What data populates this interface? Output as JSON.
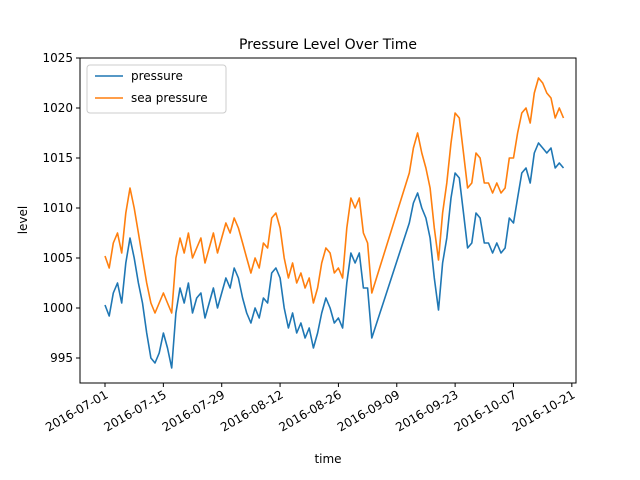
{
  "chart_data": {
    "type": "line",
    "title": "Pressure Level Over Time",
    "xlabel": "time",
    "ylabel": "level",
    "xlim": [
      "2016-06-25",
      "2016-10-22"
    ],
    "ylim": [
      992.5,
      1025
    ],
    "x_ticks": [
      "2016-07-01",
      "2016-07-15",
      "2016-07-29",
      "2016-08-12",
      "2016-08-26",
      "2016-09-09",
      "2016-09-23",
      "2016-10-07",
      "2016-10-21"
    ],
    "y_ticks": [
      995,
      1000,
      1005,
      1010,
      1015,
      1020,
      1025
    ],
    "grid": false,
    "legend": "upper left",
    "series": [
      {
        "name": "pressure",
        "color": "#1f77b4",
        "points": [
          [
            "2016-07-01",
            1000.3
          ],
          [
            "2016-07-02",
            999.2
          ],
          [
            "2016-07-03",
            1001.5
          ],
          [
            "2016-07-04",
            1002.5
          ],
          [
            "2016-07-05",
            1000.5
          ],
          [
            "2016-07-06",
            1004.5
          ],
          [
            "2016-07-07",
            1007.0
          ],
          [
            "2016-07-08",
            1005.0
          ],
          [
            "2016-07-09",
            1002.5
          ],
          [
            "2016-07-10",
            1000.5
          ],
          [
            "2016-07-11",
            997.5
          ],
          [
            "2016-07-12",
            995.0
          ],
          [
            "2016-07-13",
            994.5
          ],
          [
            "2016-07-14",
            995.5
          ],
          [
            "2016-07-15",
            997.5
          ],
          [
            "2016-07-16",
            996.0
          ],
          [
            "2016-07-17",
            994.0
          ],
          [
            "2016-07-18",
            999.5
          ],
          [
            "2016-07-19",
            1002.0
          ],
          [
            "2016-07-20",
            1000.5
          ],
          [
            "2016-07-21",
            1002.5
          ],
          [
            "2016-07-22",
            999.5
          ],
          [
            "2016-07-23",
            1001.0
          ],
          [
            "2016-07-24",
            1001.5
          ],
          [
            "2016-07-25",
            999.0
          ],
          [
            "2016-07-26",
            1000.5
          ],
          [
            "2016-07-27",
            1002.0
          ],
          [
            "2016-07-28",
            1000.0
          ],
          [
            "2016-07-29",
            1001.5
          ],
          [
            "2016-07-30",
            1003.0
          ],
          [
            "2016-07-31",
            1002.0
          ],
          [
            "2016-08-01",
            1004.0
          ],
          [
            "2016-08-02",
            1003.0
          ],
          [
            "2016-08-03",
            1001.0
          ],
          [
            "2016-08-04",
            999.5
          ],
          [
            "2016-08-05",
            998.5
          ],
          [
            "2016-08-06",
            1000.0
          ],
          [
            "2016-08-07",
            999.0
          ],
          [
            "2016-08-08",
            1001.0
          ],
          [
            "2016-08-09",
            1000.5
          ],
          [
            "2016-08-10",
            1003.5
          ],
          [
            "2016-08-11",
            1004.0
          ],
          [
            "2016-08-12",
            1003.0
          ],
          [
            "2016-08-13",
            1000.0
          ],
          [
            "2016-08-14",
            998.0
          ],
          [
            "2016-08-15",
            999.5
          ],
          [
            "2016-08-16",
            997.5
          ],
          [
            "2016-08-17",
            998.5
          ],
          [
            "2016-08-18",
            997.0
          ],
          [
            "2016-08-19",
            998.0
          ],
          [
            "2016-08-20",
            996.0
          ],
          [
            "2016-08-21",
            997.5
          ],
          [
            "2016-08-22",
            999.5
          ],
          [
            "2016-08-23",
            1001.0
          ],
          [
            "2016-08-24",
            1000.0
          ],
          [
            "2016-08-25",
            998.5
          ],
          [
            "2016-08-26",
            999.0
          ],
          [
            "2016-08-27",
            998.0
          ],
          [
            "2016-08-28",
            1002.5
          ],
          [
            "2016-08-29",
            1005.5
          ],
          [
            "2016-08-30",
            1004.5
          ],
          [
            "2016-08-31",
            1005.5
          ],
          [
            "2016-09-01",
            1002.0
          ],
          [
            "2016-09-02",
            1002.0
          ],
          [
            "2016-09-03",
            997.0
          ],
          [
            "2016-09-12",
            1008.5
          ],
          [
            "2016-09-13",
            1010.5
          ],
          [
            "2016-09-14",
            1011.5
          ],
          [
            "2016-09-15",
            1010.0
          ],
          [
            "2016-09-16",
            1009.0
          ],
          [
            "2016-09-17",
            1007.0
          ],
          [
            "2016-09-18",
            1003.0
          ],
          [
            "2016-09-19",
            999.8
          ],
          [
            "2016-09-20",
            1004.5
          ],
          [
            "2016-09-21",
            1007.0
          ],
          [
            "2016-09-22",
            1011.0
          ],
          [
            "2016-09-23",
            1013.5
          ],
          [
            "2016-09-24",
            1013.0
          ],
          [
            "2016-09-25",
            1009.5
          ],
          [
            "2016-09-26",
            1006.0
          ],
          [
            "2016-09-27",
            1006.5
          ],
          [
            "2016-09-28",
            1009.5
          ],
          [
            "2016-09-29",
            1009.0
          ],
          [
            "2016-09-30",
            1006.5
          ],
          [
            "2016-10-01",
            1006.5
          ],
          [
            "2016-10-02",
            1005.5
          ],
          [
            "2016-10-03",
            1006.5
          ],
          [
            "2016-10-04",
            1005.5
          ],
          [
            "2016-10-05",
            1006.0
          ],
          [
            "2016-10-06",
            1009.0
          ],
          [
            "2016-10-07",
            1008.5
          ],
          [
            "2016-10-08",
            1011.0
          ],
          [
            "2016-10-09",
            1013.5
          ],
          [
            "2016-10-10",
            1014.0
          ],
          [
            "2016-10-11",
            1012.5
          ],
          [
            "2016-10-12",
            1015.5
          ],
          [
            "2016-10-13",
            1016.5
          ],
          [
            "2016-10-14",
            1016.0
          ],
          [
            "2016-10-15",
            1015.5
          ],
          [
            "2016-10-16",
            1016.0
          ],
          [
            "2016-10-17",
            1014.0
          ],
          [
            "2016-10-18",
            1014.5
          ],
          [
            "2016-10-19",
            1014.0
          ]
        ]
      },
      {
        "name": "sea pressure",
        "color": "#ff7f0e",
        "points": [
          [
            "2016-07-01",
            1005.2
          ],
          [
            "2016-07-02",
            1004.0
          ],
          [
            "2016-07-03",
            1006.5
          ],
          [
            "2016-07-04",
            1007.5
          ],
          [
            "2016-07-05",
            1005.5
          ],
          [
            "2016-07-06",
            1009.5
          ],
          [
            "2016-07-07",
            1012.0
          ],
          [
            "2016-07-08",
            1010.0
          ],
          [
            "2016-07-09",
            1007.5
          ],
          [
            "2016-07-10",
            1005.0
          ],
          [
            "2016-07-11",
            1002.5
          ],
          [
            "2016-07-12",
            1000.5
          ],
          [
            "2016-07-13",
            999.5
          ],
          [
            "2016-07-14",
            1000.5
          ],
          [
            "2016-07-15",
            1001.5
          ],
          [
            "2016-07-16",
            1000.5
          ],
          [
            "2016-07-17",
            999.5
          ],
          [
            "2016-07-18",
            1005.0
          ],
          [
            "2016-07-19",
            1007.0
          ],
          [
            "2016-07-20",
            1005.5
          ],
          [
            "2016-07-21",
            1007.5
          ],
          [
            "2016-07-22",
            1005.0
          ],
          [
            "2016-07-23",
            1006.0
          ],
          [
            "2016-07-24",
            1007.0
          ],
          [
            "2016-07-25",
            1004.5
          ],
          [
            "2016-07-26",
            1006.0
          ],
          [
            "2016-07-27",
            1007.5
          ],
          [
            "2016-07-28",
            1005.5
          ],
          [
            "2016-07-29",
            1007.0
          ],
          [
            "2016-07-30",
            1008.5
          ],
          [
            "2016-07-31",
            1007.5
          ],
          [
            "2016-08-01",
            1009.0
          ],
          [
            "2016-08-02",
            1008.0
          ],
          [
            "2016-08-03",
            1006.5
          ],
          [
            "2016-08-04",
            1005.0
          ],
          [
            "2016-08-05",
            1003.5
          ],
          [
            "2016-08-06",
            1005.0
          ],
          [
            "2016-08-07",
            1004.0
          ],
          [
            "2016-08-08",
            1006.5
          ],
          [
            "2016-08-09",
            1006.0
          ],
          [
            "2016-08-10",
            1009.0
          ],
          [
            "2016-08-11",
            1009.5
          ],
          [
            "2016-08-12",
            1008.0
          ],
          [
            "2016-08-13",
            1005.0
          ],
          [
            "2016-08-14",
            1003.0
          ],
          [
            "2016-08-15",
            1004.5
          ],
          [
            "2016-08-16",
            1002.5
          ],
          [
            "2016-08-17",
            1003.5
          ],
          [
            "2016-08-18",
            1002.0
          ],
          [
            "2016-08-19",
            1003.0
          ],
          [
            "2016-08-20",
            1000.5
          ],
          [
            "2016-08-21",
            1002.0
          ],
          [
            "2016-08-22",
            1004.5
          ],
          [
            "2016-08-23",
            1006.0
          ],
          [
            "2016-08-24",
            1005.5
          ],
          [
            "2016-08-25",
            1003.5
          ],
          [
            "2016-08-26",
            1004.0
          ],
          [
            "2016-08-27",
            1003.0
          ],
          [
            "2016-08-28",
            1008.0
          ],
          [
            "2016-08-29",
            1011.0
          ],
          [
            "2016-08-30",
            1010.0
          ],
          [
            "2016-08-31",
            1011.0
          ],
          [
            "2016-09-01",
            1007.5
          ],
          [
            "2016-09-02",
            1006.5
          ],
          [
            "2016-09-03",
            1001.5
          ],
          [
            "2016-09-12",
            1013.5
          ],
          [
            "2016-09-13",
            1016.0
          ],
          [
            "2016-09-14",
            1017.5
          ],
          [
            "2016-09-15",
            1015.5
          ],
          [
            "2016-09-16",
            1014.0
          ],
          [
            "2016-09-17",
            1012.0
          ],
          [
            "2016-09-18",
            1008.0
          ],
          [
            "2016-09-19",
            1004.8
          ],
          [
            "2016-09-20",
            1009.5
          ],
          [
            "2016-09-21",
            1012.5
          ],
          [
            "2016-09-22",
            1016.5
          ],
          [
            "2016-09-23",
            1019.5
          ],
          [
            "2016-09-24",
            1019.0
          ],
          [
            "2016-09-25",
            1015.5
          ],
          [
            "2016-09-26",
            1012.0
          ],
          [
            "2016-09-27",
            1012.5
          ],
          [
            "2016-09-28",
            1015.5
          ],
          [
            "2016-09-29",
            1015.0
          ],
          [
            "2016-09-30",
            1012.5
          ],
          [
            "2016-10-01",
            1012.5
          ],
          [
            "2016-10-02",
            1011.5
          ],
          [
            "2016-10-03",
            1012.5
          ],
          [
            "2016-10-04",
            1011.5
          ],
          [
            "2016-10-05",
            1012.0
          ],
          [
            "2016-10-06",
            1015.0
          ],
          [
            "2016-10-07",
            1015.0
          ],
          [
            "2016-10-08",
            1017.5
          ],
          [
            "2016-10-09",
            1019.5
          ],
          [
            "2016-10-10",
            1020.0
          ],
          [
            "2016-10-11",
            1018.5
          ],
          [
            "2016-10-12",
            1021.5
          ],
          [
            "2016-10-13",
            1023.0
          ],
          [
            "2016-10-14",
            1022.5
          ],
          [
            "2016-10-15",
            1021.5
          ],
          [
            "2016-10-16",
            1021.0
          ],
          [
            "2016-10-17",
            1019.0
          ],
          [
            "2016-10-18",
            1020.0
          ],
          [
            "2016-10-19",
            1019.0
          ]
        ]
      }
    ]
  }
}
